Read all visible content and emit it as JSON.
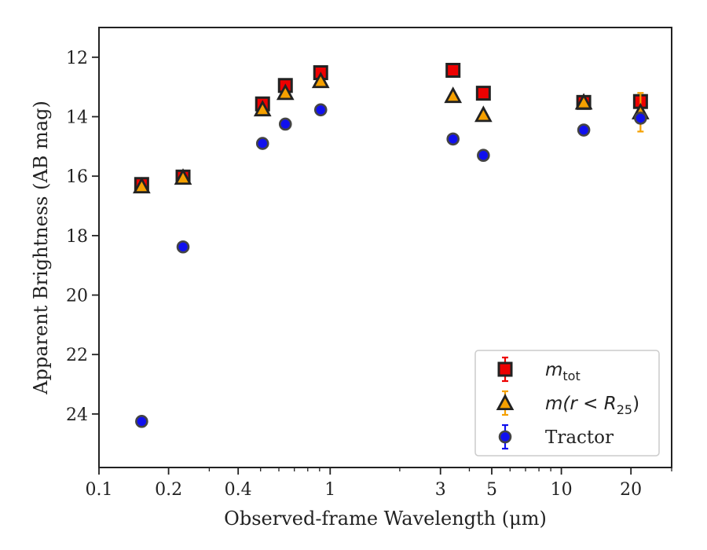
{
  "chart_data": {
    "type": "scatter",
    "xlabel": "Observed-frame Wavelength (μm)",
    "ylabel": "Apparent Brightness (AB mag)",
    "x_scale": "log",
    "xlim": [
      0.1,
      30
    ],
    "ylim": [
      25.8,
      11.0
    ],
    "y_inverted": true,
    "x_ticks": [
      0.1,
      0.2,
      0.4,
      1,
      3,
      5,
      10,
      20
    ],
    "x_tick_labels": [
      "0.1",
      "0.2",
      "0.4",
      "1",
      "3",
      "5",
      "10",
      "20"
    ],
    "y_ticks": [
      12,
      14,
      16,
      18,
      20,
      22,
      24
    ],
    "y_tick_labels": [
      "12",
      "14",
      "16",
      "18",
      "20",
      "22",
      "24"
    ],
    "legend_position": "lower-right",
    "series": [
      {
        "name": "m_tot",
        "legend_label": {
          "main": "m",
          "sub": "tot"
        },
        "marker": "square",
        "fill": "#ee0000",
        "edge": "#222222",
        "errcolor": "#ee0000",
        "points": [
          {
            "x": 0.153,
            "y": 16.28,
            "err": 0.15
          },
          {
            "x": 0.231,
            "y": 16.03,
            "err": 0.1
          },
          {
            "x": 0.51,
            "y": 13.57,
            "err": 0.1
          },
          {
            "x": 0.64,
            "y": 12.95,
            "err": 0.1
          },
          {
            "x": 0.91,
            "y": 12.52,
            "err": 0.1
          },
          {
            "x": 3.4,
            "y": 12.44,
            "err": 0.08
          },
          {
            "x": 4.6,
            "y": 13.21,
            "err": 0.08
          },
          {
            "x": 12.5,
            "y": 13.52,
            "err": 0.08
          },
          {
            "x": 22.0,
            "y": 13.49,
            "err": 0.12
          }
        ]
      },
      {
        "name": "m(r < R25)",
        "legend_label": {
          "main": "m(r < R",
          "sub": "25",
          "tail": ")"
        },
        "marker": "triangle",
        "fill": "#f5a000",
        "edge": "#222222",
        "errcolor": "#f5a000",
        "points": [
          {
            "x": 0.153,
            "y": 16.34,
            "err": 0.12
          },
          {
            "x": 0.231,
            "y": 16.05,
            "err": 0.1
          },
          {
            "x": 0.51,
            "y": 13.75,
            "err": 0.08
          },
          {
            "x": 0.64,
            "y": 13.2,
            "err": 0.08
          },
          {
            "x": 0.91,
            "y": 12.8,
            "err": 0.08
          },
          {
            "x": 3.4,
            "y": 13.3,
            "err": 0.06
          },
          {
            "x": 4.6,
            "y": 13.94,
            "err": 0.06
          },
          {
            "x": 12.5,
            "y": 13.52,
            "err": 0.06
          },
          {
            "x": 22.0,
            "y": 13.85,
            "err": 0.65
          }
        ]
      },
      {
        "name": "Tractor",
        "legend_label": {
          "main": "Tractor"
        },
        "marker": "circle",
        "fill": "#1010ee",
        "edge": "#444444",
        "errcolor": "#1010ee",
        "points": [
          {
            "x": 0.153,
            "y": 24.25,
            "err": 0.1
          },
          {
            "x": 0.231,
            "y": 18.38,
            "err": 0.06
          },
          {
            "x": 0.51,
            "y": 14.9,
            "err": 0.05
          },
          {
            "x": 0.64,
            "y": 14.25,
            "err": 0.05
          },
          {
            "x": 0.91,
            "y": 13.77,
            "err": 0.05
          },
          {
            "x": 3.4,
            "y": 14.75,
            "err": 0.05
          },
          {
            "x": 4.6,
            "y": 15.3,
            "err": 0.05
          },
          {
            "x": 12.5,
            "y": 14.45,
            "err": 0.05
          },
          {
            "x": 22.0,
            "y": 14.05,
            "err": 0.1
          }
        ]
      }
    ]
  }
}
